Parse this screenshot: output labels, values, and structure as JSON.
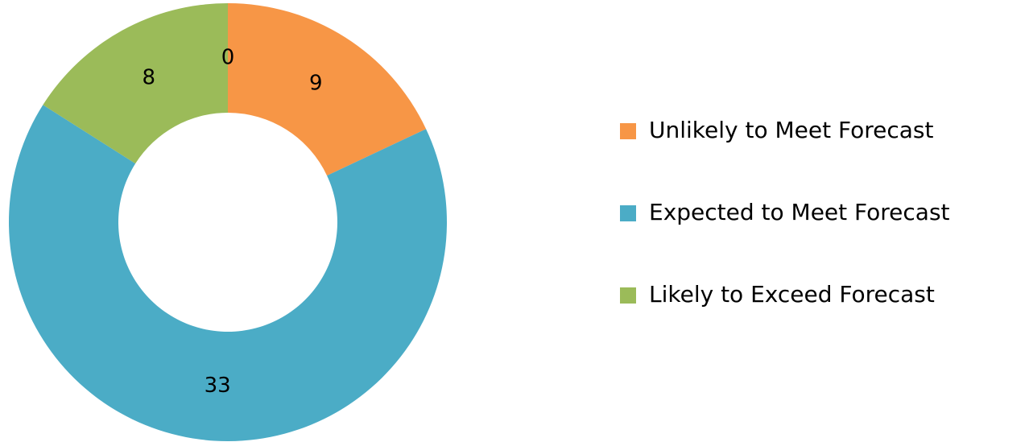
{
  "chart_data": {
    "type": "donut",
    "categories": [
      "Unlikely to Meet Forecast",
      "Expected to Meet Forecast",
      "Likely to Exceed Forecast",
      null
    ],
    "values": [
      9,
      33,
      8,
      0
    ],
    "colors": [
      "#f79646",
      "#4bacc6",
      "#9bbb59"
    ],
    "legend": "right"
  }
}
